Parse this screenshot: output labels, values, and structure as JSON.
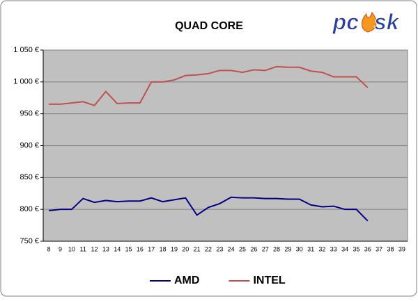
{
  "chart_data": {
    "type": "line",
    "title": "QUAD CORE",
    "logo": [
      "pc",
      "sk"
    ],
    "categories": [
      "8",
      "9",
      "10",
      "11",
      "12",
      "13",
      "14",
      "15",
      "16",
      "17",
      "18",
      "19",
      "20",
      "21",
      "22",
      "23",
      "24",
      "25",
      "26",
      "27",
      "28",
      "29",
      "30",
      "31",
      "32",
      "33",
      "34",
      "35",
      "36",
      "37",
      "38",
      "39"
    ],
    "series": [
      {
        "name": "AMD",
        "color": "#000080",
        "values": [
          798,
          800,
          800,
          817,
          811,
          814,
          812,
          813,
          813,
          818,
          812,
          815,
          818,
          791,
          803,
          809,
          819,
          818,
          818,
          817,
          817,
          816,
          816,
          807,
          804,
          805,
          800,
          800,
          782,
          null,
          null,
          null
        ]
      },
      {
        "name": "INTEL",
        "color": "#c0504d",
        "values": [
          965,
          965,
          967,
          969,
          963,
          985,
          966,
          967,
          967,
          1000,
          1000,
          1003,
          1010,
          1011,
          1013,
          1018,
          1018,
          1015,
          1019,
          1018,
          1024,
          1023,
          1023,
          1017,
          1015,
          1008,
          1008,
          1008,
          991,
          null,
          null,
          null
        ]
      }
    ],
    "ylim": [
      750,
      1050
    ],
    "yticks": [
      {
        "value": 750,
        "label": "750 €"
      },
      {
        "value": 800,
        "label": "800 €"
      },
      {
        "value": 850,
        "label": "850 €"
      },
      {
        "value": 900,
        "label": "900 €"
      },
      {
        "value": 950,
        "label": "950 €"
      },
      {
        "value": 1000,
        "label": "1 000 €"
      },
      {
        "value": 1050,
        "label": "1 050 €"
      }
    ],
    "grid": true,
    "legend": "bottom",
    "plot_background": "#c0c0c0"
  }
}
